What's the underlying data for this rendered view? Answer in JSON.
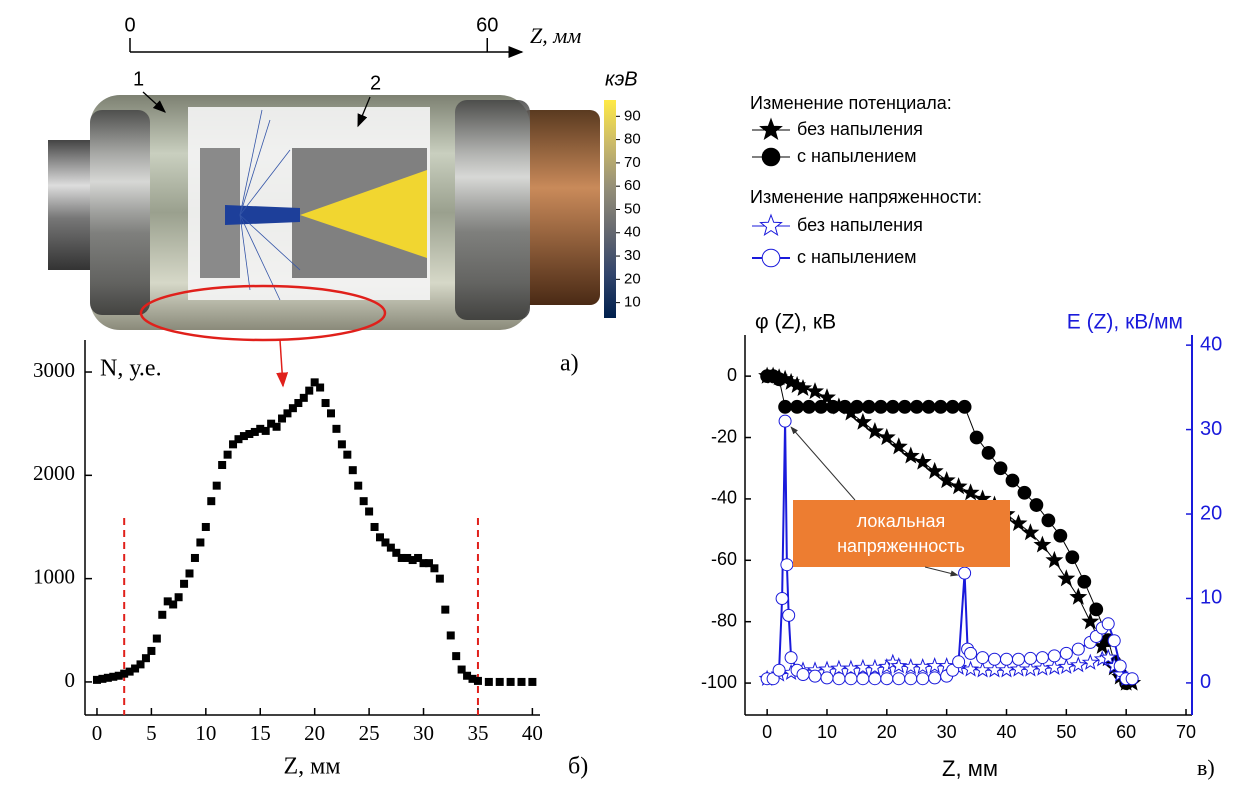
{
  "figure_a": {
    "scale": {
      "ticks": [
        0,
        60
      ],
      "lim": [
        0,
        65.5
      ],
      "label": "Z, мм"
    },
    "callouts": [
      "1",
      "2"
    ],
    "colorbar": {
      "title": "кэВ",
      "lim": [
        3.4,
        97
      ],
      "ticks": [
        10,
        20,
        30,
        40,
        50,
        60,
        70,
        80,
        90
      ]
    },
    "panel_label": "а)"
  },
  "chart_data": [
    {
      "type": "scatter",
      "panel_label": "б)",
      "y_label": "N, у.е.",
      "x_label": "Z, мм",
      "marker": "square",
      "color": "#000000",
      "x": [
        0,
        0.5,
        1,
        1.5,
        2,
        2.5,
        3,
        3.5,
        4,
        4.5,
        5,
        5.5,
        6,
        6.5,
        7,
        7.5,
        8,
        8.5,
        9,
        9.5,
        10,
        10.5,
        11,
        11.5,
        12,
        12.5,
        13,
        13.5,
        14,
        14.5,
        15,
        15.5,
        16,
        16.5,
        17,
        17.5,
        18,
        18.5,
        19,
        19.5,
        20,
        20.5,
        21,
        21.5,
        22,
        22.5,
        23,
        23.5,
        24,
        24.5,
        25,
        25.5,
        26,
        26.5,
        27,
        27.5,
        28,
        28.5,
        29,
        29.5,
        30,
        30.5,
        31,
        31.5,
        32,
        32.5,
        33,
        33.5,
        34,
        34.5,
        35,
        36,
        37,
        38,
        39,
        40
      ],
      "values": [
        20,
        30,
        40,
        50,
        60,
        80,
        100,
        130,
        170,
        230,
        300,
        420,
        650,
        780,
        750,
        820,
        950,
        1050,
        1200,
        1350,
        1500,
        1750,
        1900,
        2100,
        2200,
        2300,
        2350,
        2380,
        2400,
        2420,
        2450,
        2430,
        2500,
        2470,
        2550,
        2600,
        2650,
        2700,
        2750,
        2820,
        2900,
        2850,
        2700,
        2600,
        2450,
        2300,
        2200,
        2050,
        1900,
        1750,
        1650,
        1500,
        1400,
        1350,
        1300,
        1250,
        1200,
        1200,
        1180,
        1200,
        1150,
        1150,
        1100,
        1000,
        700,
        450,
        250,
        120,
        60,
        30,
        10,
        0,
        0,
        0,
        0,
        0
      ],
      "vlines": [
        2.5,
        35
      ],
      "vline_color": "#e0201b",
      "xlim": [
        -1.1,
        40.7
      ],
      "xticks": [
        0,
        5,
        10,
        15,
        20,
        25,
        30,
        35,
        40
      ],
      "ylim": [
        -320,
        3310
      ],
      "yticks": [
        0,
        1000,
        2000,
        3000
      ]
    },
    {
      "type": "line",
      "panel_label": "в)",
      "y_label": "φ (Z), кВ",
      "y2_label": "E (Z), кВ/мм",
      "x_label": "Z, мм",
      "legend_groups": [
        "Изменение потенциала:",
        "Изменение напряженности:"
      ],
      "annotation": [
        "локальная",
        "напряженность"
      ],
      "annotation_color": "#ed7d31",
      "xlim": [
        -3.7,
        71
      ],
      "xticks": [
        0,
        10,
        20,
        30,
        40,
        50,
        60,
        70
      ],
      "ylim": [
        -110.4,
        13.4
      ],
      "yticks": [
        0,
        -20,
        -40,
        -60,
        -80,
        -100
      ],
      "y2lim": [
        -3.8,
        41.2
      ],
      "y2ticks": [
        0,
        10,
        20,
        30,
        40
      ],
      "y2_color": "#1a1adb",
      "series": [
        {
          "name": "без напыления",
          "color": "#000000",
          "marker": "star",
          "filled": true,
          "x": [
            0,
            1,
            2,
            3,
            4,
            5,
            6,
            8,
            10,
            12,
            14,
            16,
            18,
            20,
            22,
            24,
            26,
            28,
            30,
            32,
            34,
            36,
            38,
            40,
            42,
            44,
            46,
            48,
            50,
            52,
            54,
            56,
            57,
            58,
            59,
            60,
            61
          ],
          "values": [
            0,
            0,
            -0.5,
            -1,
            -2,
            -3,
            -4,
            -5,
            -7,
            -10,
            -12,
            -15,
            -18,
            -20,
            -23,
            -26,
            -28,
            -31,
            -34,
            -36,
            -38,
            -40,
            -42,
            -45,
            -48,
            -51,
            -55,
            -60,
            -66,
            -72,
            -80,
            -88,
            -92,
            -95,
            -98,
            -100,
            -100
          ]
        },
        {
          "name": "с напылением",
          "color": "#000000",
          "marker": "circle",
          "filled": true,
          "x": [
            0,
            1,
            2,
            3,
            5,
            7,
            9,
            11,
            13,
            15,
            17,
            19,
            21,
            23,
            25,
            27,
            29,
            31,
            33,
            35,
            37,
            39,
            41,
            43,
            45,
            47,
            49,
            51,
            53,
            55,
            57,
            58,
            59,
            60
          ],
          "values": [
            0,
            0,
            -1,
            -10,
            -10,
            -10,
            -10,
            -10,
            -10,
            -10,
            -10,
            -10,
            -10,
            -10,
            -10,
            -10,
            -10,
            -10,
            -10,
            -20,
            -25,
            -30,
            -34,
            -38,
            -42,
            -47,
            -52,
            -59,
            -67,
            -76,
            -86,
            -93,
            -97,
            -100
          ]
        },
        {
          "name": "без напыления",
          "color": "#1a1adb",
          "marker": "star",
          "filled": false,
          "axis": "y2",
          "x": [
            0,
            2,
            4,
            6,
            8,
            10,
            12,
            14,
            16,
            18,
            20,
            21,
            22,
            24,
            26,
            28,
            30,
            32,
            34,
            36,
            38,
            40,
            42,
            44,
            46,
            48,
            50,
            52,
            54,
            56,
            57,
            58,
            59,
            60
          ],
          "values": [
            0.5,
            1,
            1.2,
            1.5,
            1.5,
            1.6,
            1.7,
            1.7,
            1.8,
            1.8,
            1.9,
            2.4,
            2,
            1.9,
            1.9,
            2,
            2,
            1.8,
            1.6,
            1.5,
            1.5,
            1.5,
            1.6,
            1.6,
            1.7,
            1.8,
            1.9,
            2.1,
            2.4,
            2.8,
            3,
            2,
            1,
            0.5
          ]
        },
        {
          "name": "с напылением",
          "color": "#1a1adb",
          "marker": "circle",
          "filled": false,
          "axis": "y2",
          "x": [
            0,
            1,
            2,
            2.5,
            3,
            3.3,
            3.6,
            4,
            5,
            6,
            8,
            10,
            12,
            14,
            16,
            18,
            20,
            22,
            24,
            26,
            28,
            30,
            31,
            32,
            33,
            33.5,
            34,
            36,
            38,
            40,
            42,
            44,
            46,
            48,
            50,
            52,
            54,
            55,
            56,
            57,
            58,
            59,
            60,
            61
          ],
          "values": [
            0.5,
            0.5,
            1.5,
            10,
            31,
            14,
            8,
            3,
            1.5,
            1,
            0.8,
            0.6,
            0.5,
            0.5,
            0.5,
            0.5,
            0.5,
            0.5,
            0.5,
            0.5,
            0.6,
            0.8,
            1.5,
            2.5,
            13,
            4,
            3.5,
            3,
            2.8,
            2.8,
            2.8,
            2.9,
            3,
            3.2,
            3.5,
            4,
            4.8,
            5.5,
            6.5,
            7,
            5,
            2,
            0.5,
            0.5
          ]
        }
      ]
    }
  ]
}
